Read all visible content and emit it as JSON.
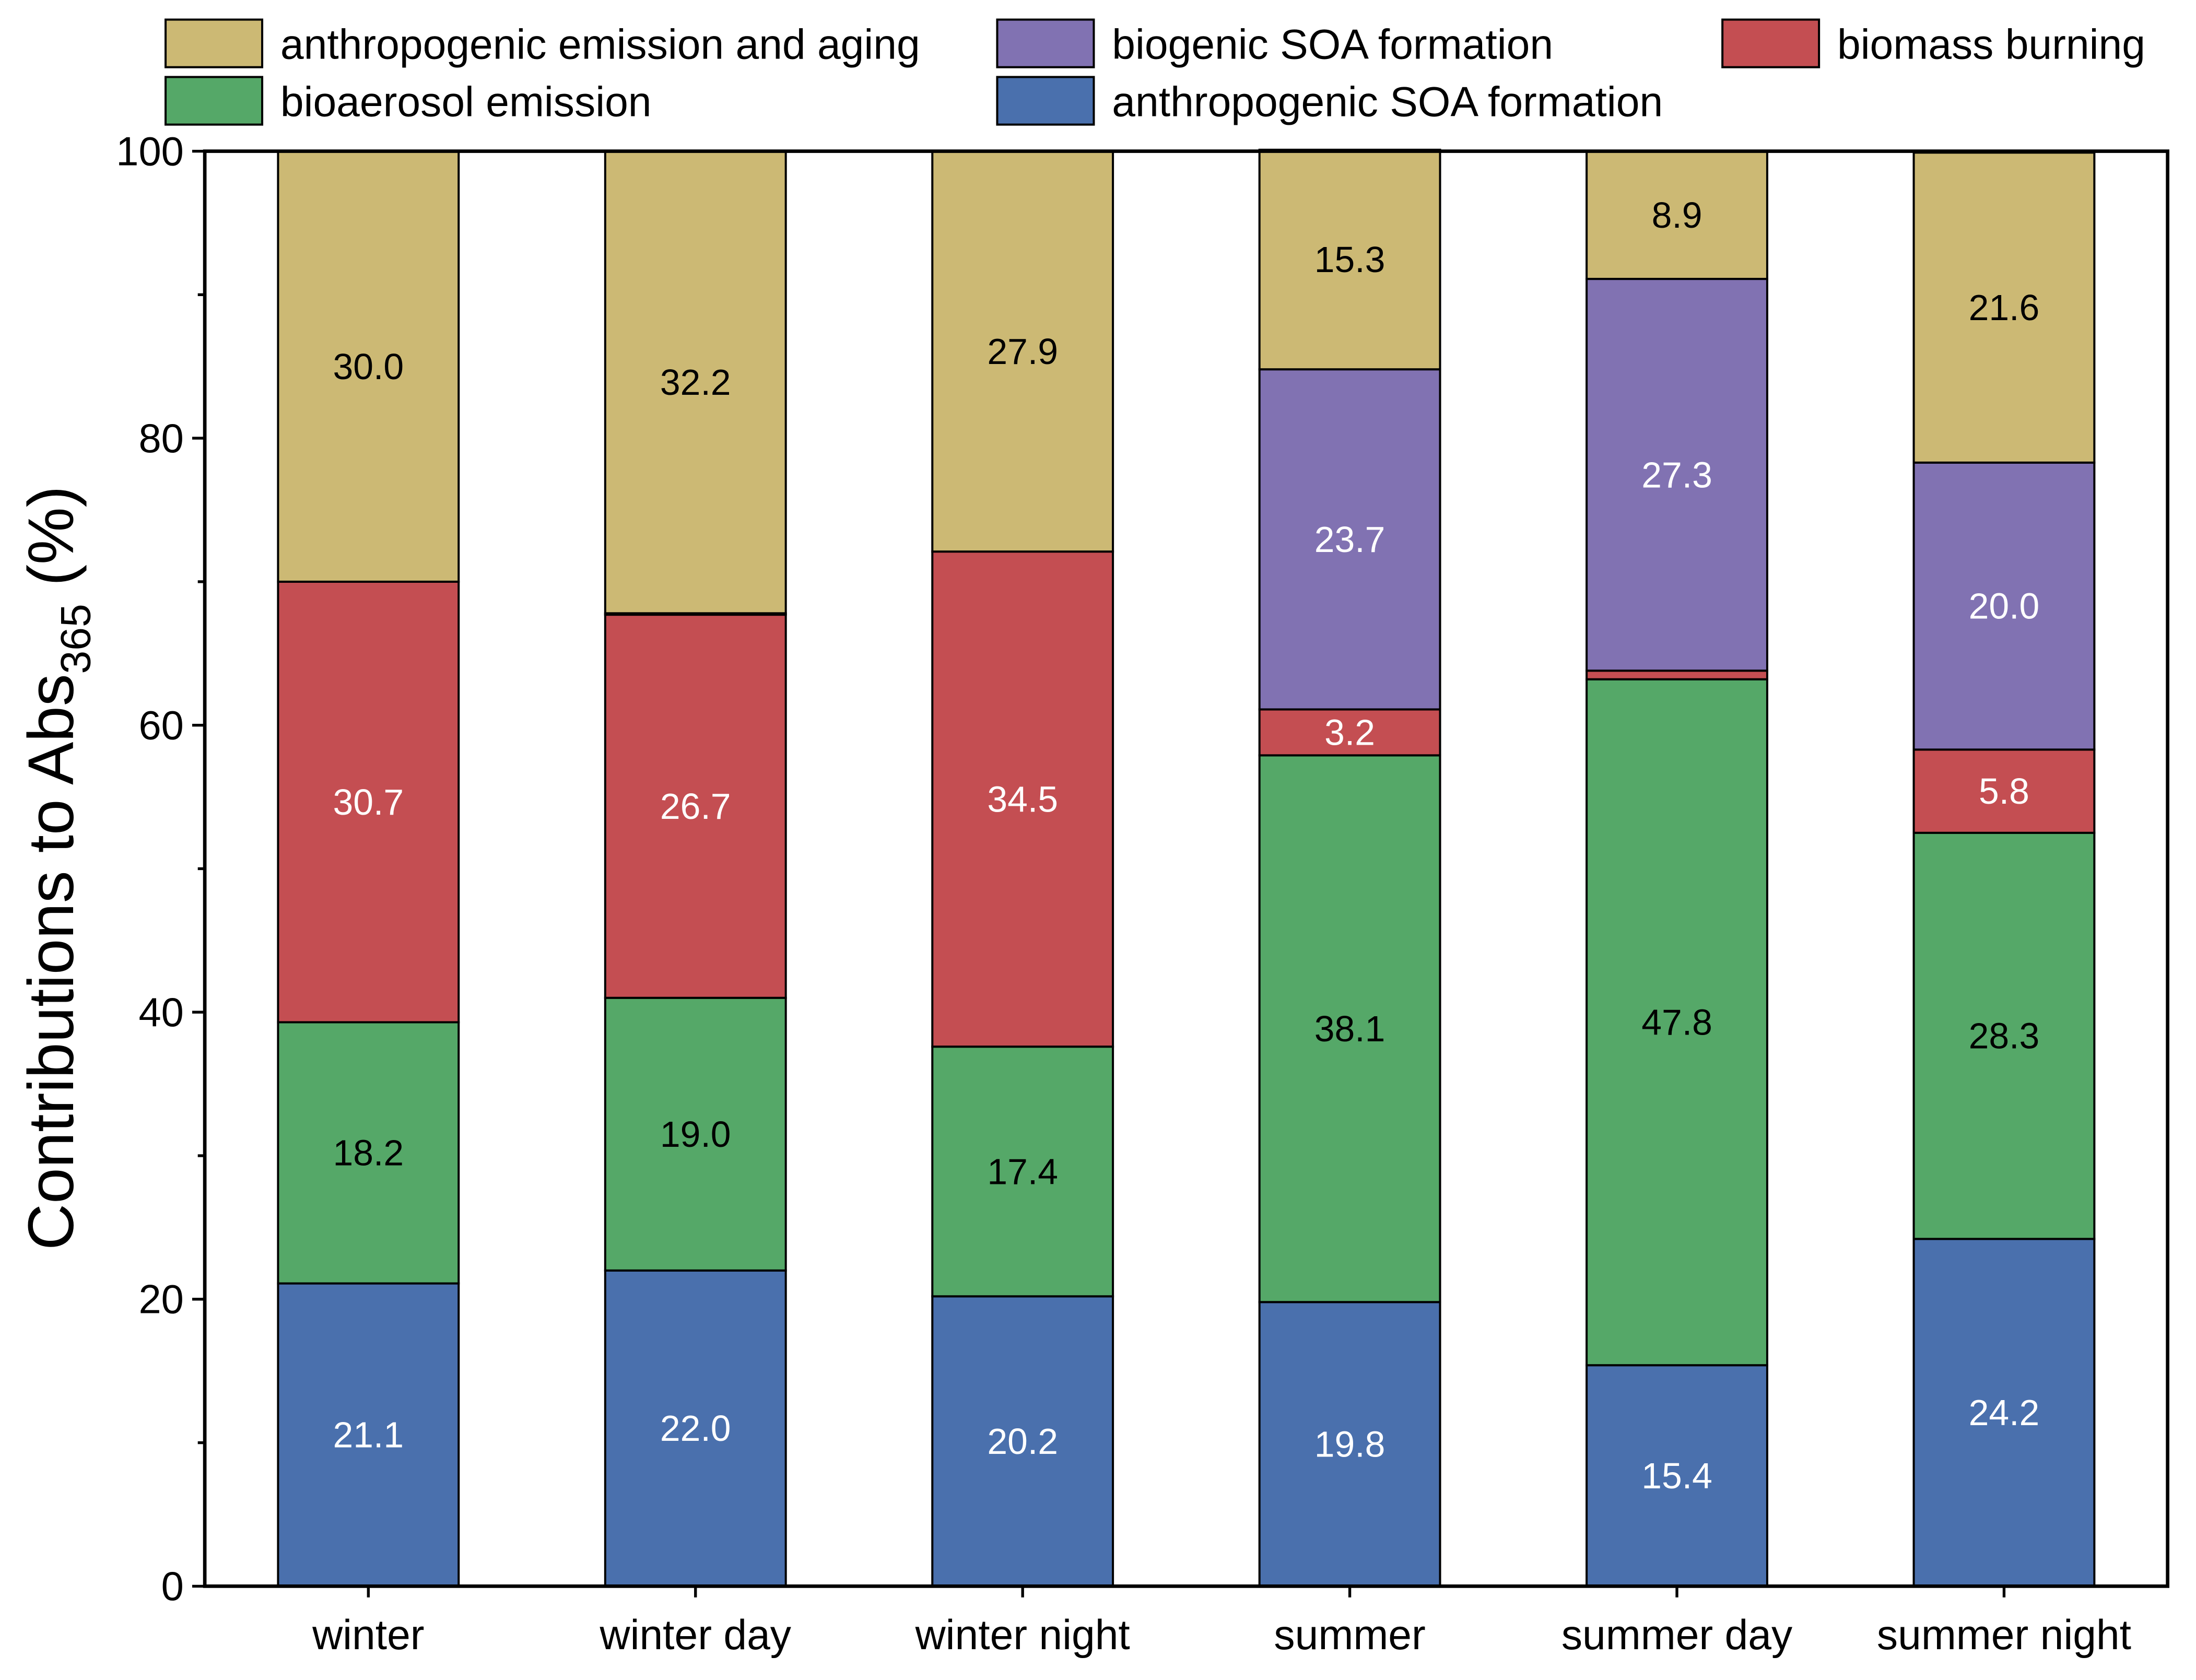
{
  "chart_data": {
    "type": "bar",
    "stacked": true,
    "categories": [
      "winter",
      "winter day",
      "winter night",
      "summer",
      "summer day",
      "summer night"
    ],
    "ylabel": "Contributions to Abs",
    "ylabel_subscript": "365",
    "ylabel_suffix": " (%)",
    "xlabel": "",
    "ylim": [
      0,
      100
    ],
    "yticks": [
      "0",
      "20",
      "40",
      "60",
      "80",
      "100"
    ],
    "grid": false,
    "legend_position": "top",
    "series": [
      {
        "name": "anthropogenic SOA formation",
        "color": "#4a70ad",
        "label_color": "#ffffff",
        "values": [
          21.1,
          22.0,
          20.2,
          19.8,
          15.4,
          24.2
        ],
        "labels": [
          "21.1",
          "22.0",
          "20.2",
          "19.8",
          "15.4",
          "24.2"
        ]
      },
      {
        "name": "bioaerosol emission",
        "color": "#55a868",
        "label_color": "#000000",
        "values": [
          18.2,
          19.0,
          17.4,
          38.1,
          47.8,
          28.3
        ],
        "labels": [
          "18.2",
          "19.0",
          "17.4",
          "38.1",
          "47.8",
          "28.3"
        ]
      },
      {
        "name": "biomass burning",
        "color": "#c44e52",
        "label_color": "#ffffff",
        "values": [
          30.7,
          26.7,
          34.5,
          3.2,
          0.6,
          5.8
        ],
        "labels": [
          "30.7",
          "26.7",
          "34.5",
          "3.2",
          "",
          "5.8"
        ]
      },
      {
        "name": "biogenic SOA formation",
        "color": "#8172b2",
        "label_color": "#ffffff",
        "values": [
          0,
          0.1,
          0,
          23.7,
          27.3,
          20.0
        ],
        "labels": [
          "",
          "",
          "",
          "23.7",
          "27.3",
          "20.0"
        ]
      },
      {
        "name": "anthropogenic emission and aging",
        "color": "#ccb974",
        "label_color": "#000000",
        "values": [
          30.0,
          32.2,
          27.9,
          15.3,
          8.9,
          21.6
        ],
        "labels": [
          "30.0",
          "32.2",
          "27.9",
          "15.3",
          "8.9",
          "21.6"
        ]
      }
    ],
    "legend_order": [
      4,
      3,
      2,
      1,
      0
    ]
  }
}
